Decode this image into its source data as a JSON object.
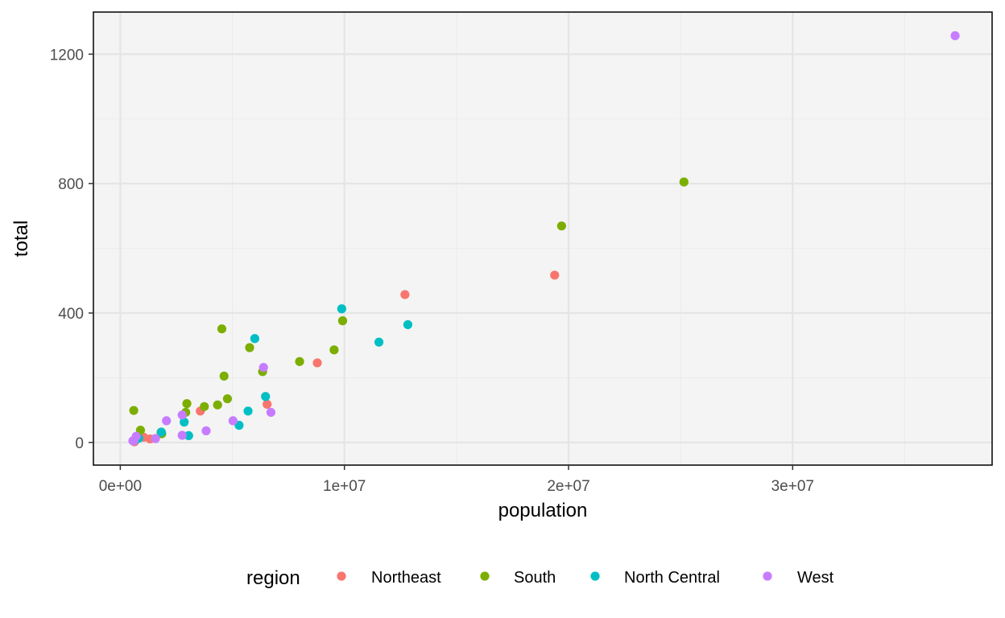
{
  "chart_data": {
    "type": "scatter",
    "xlabel": "population",
    "ylabel": "total",
    "xlim": [
      -1200000,
      38900000
    ],
    "ylim": [
      -70,
      1330
    ],
    "x_ticks": [
      {
        "value": 0,
        "label": "0e+00"
      },
      {
        "value": 10000000,
        "label": "1e+07"
      },
      {
        "value": 20000000,
        "label": "2e+07"
      },
      {
        "value": 30000000,
        "label": "3e+07"
      }
    ],
    "y_ticks": [
      {
        "value": 0,
        "label": "0"
      },
      {
        "value": 400,
        "label": "400"
      },
      {
        "value": 800,
        "label": "800"
      },
      {
        "value": 1200,
        "label": "1200"
      }
    ],
    "grid": true,
    "panel_background": "#f4f4f4",
    "legend": {
      "title": "region",
      "position": "bottom",
      "entries": [
        {
          "label": "Northeast",
          "color": "#f8766d"
        },
        {
          "label": "South",
          "color": "#7cae00"
        },
        {
          "label": "North Central",
          "color": "#00bfc4"
        },
        {
          "label": "West",
          "color": "#c77cff"
        }
      ]
    },
    "series": [
      {
        "name": "Northeast",
        "color": "#f8766d",
        "points": [
          [
            19380000,
            517
          ],
          [
            12700000,
            457
          ],
          [
            8790000,
            246
          ],
          [
            6550000,
            118
          ],
          [
            3570000,
            97
          ],
          [
            1330000,
            11
          ],
          [
            1050000,
            16
          ],
          [
            630000,
            2
          ]
        ]
      },
      {
        "name": "South",
        "color": "#7cae00",
        "points": [
          [
            25150000,
            805
          ],
          [
            19690000,
            669
          ],
          [
            9920000,
            376
          ],
          [
            9540000,
            286
          ],
          [
            8000000,
            250
          ],
          [
            6350000,
            219
          ],
          [
            5770000,
            293
          ],
          [
            4780000,
            135
          ],
          [
            4630000,
            205
          ],
          [
            4530000,
            351
          ],
          [
            4340000,
            116
          ],
          [
            3750000,
            111
          ],
          [
            2970000,
            120
          ],
          [
            2920000,
            93
          ],
          [
            1850000,
            27
          ],
          [
            1820000,
            31
          ],
          [
            900000,
            38
          ],
          [
            600000,
            99
          ]
        ]
      },
      {
        "name": "North Central",
        "color": "#00bfc4",
        "points": [
          [
            12830000,
            364
          ],
          [
            11540000,
            310
          ],
          [
            9880000,
            413
          ],
          [
            6480000,
            142
          ],
          [
            6000000,
            321
          ],
          [
            5700000,
            97
          ],
          [
            5300000,
            53
          ],
          [
            3050000,
            21
          ],
          [
            2850000,
            63
          ],
          [
            1830000,
            32
          ],
          [
            820000,
            13
          ],
          [
            670000,
            8
          ]
        ]
      },
      {
        "name": "West",
        "color": "#c77cff",
        "points": [
          [
            37250000,
            1257
          ],
          [
            6720000,
            93
          ],
          [
            6390000,
            232
          ],
          [
            5030000,
            67
          ],
          [
            3830000,
            36
          ],
          [
            2760000,
            85
          ],
          [
            2760000,
            22
          ],
          [
            2060000,
            67
          ],
          [
            1570000,
            12
          ],
          [
            710000,
            19
          ],
          [
            600000,
            5
          ],
          [
            560000,
            5
          ]
        ]
      }
    ]
  }
}
